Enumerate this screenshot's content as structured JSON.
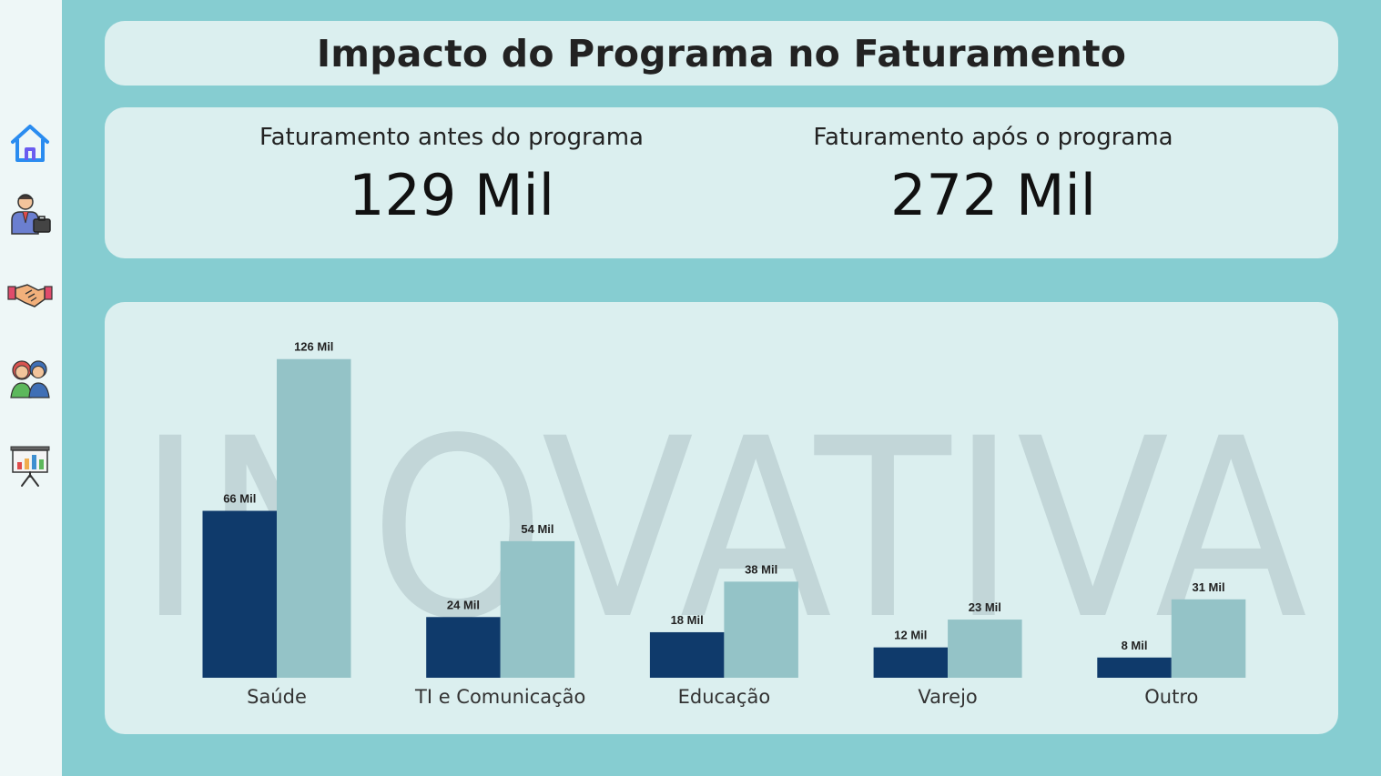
{
  "header": {
    "title": "Impacto do Programa no Faturamento"
  },
  "kpis": [
    {
      "label": "Faturamento antes do programa",
      "value": "129 Mil"
    },
    {
      "label": "Faturamento após o programa",
      "value": "272 Mil"
    }
  ],
  "nav": [
    {
      "icon": "home-icon"
    },
    {
      "icon": "businessman-icon"
    },
    {
      "icon": "handshake-icon"
    },
    {
      "icon": "people-icon"
    },
    {
      "icon": "presentation-chart-icon"
    }
  ],
  "watermark": "INOVATIVA",
  "colors": {
    "before": "#0f3a6b",
    "after": "#94c3c7",
    "panel": "#dbefef",
    "background": "#86cdd1"
  },
  "chart_data": {
    "type": "bar",
    "categories": [
      "Saúde",
      "TI e Comunicação",
      "Educação",
      "Varejo",
      "Outro"
    ],
    "series": [
      {
        "values": [
          66,
          24,
          18,
          12,
          8
        ],
        "labels": [
          "66 Mil",
          "24 Mil",
          "18 Mil",
          "12 Mil",
          "8 Mil"
        ]
      },
      {
        "values": [
          126,
          54,
          38,
          23,
          31
        ],
        "labels": [
          "126 Mil",
          "54 Mil",
          "38 Mil",
          "23 Mil",
          "31 Mil"
        ]
      }
    ],
    "ylim": [
      0,
      130
    ]
  }
}
